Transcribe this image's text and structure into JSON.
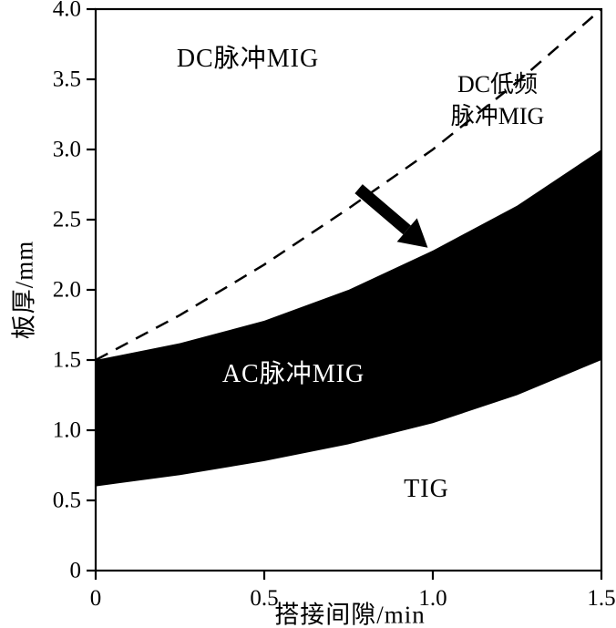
{
  "figure": {
    "background": "#ffffff",
    "ink_color": "#000000",
    "band_fill": "#000000"
  },
  "chart_data": {
    "type": "area",
    "title": "",
    "xlabel": "搭接间隙/min",
    "ylabel": "板厚/mm",
    "xlim": [
      0,
      1.5
    ],
    "ylim": [
      0,
      4.0
    ],
    "grid": false,
    "x_ticks": [
      0,
      0.5,
      1.0,
      1.5
    ],
    "x_tick_labels": [
      "0",
      "0.5",
      "1.0",
      "1.5"
    ],
    "y_ticks": [
      0,
      0.5,
      1.0,
      1.5,
      2.0,
      2.5,
      3.0,
      3.5,
      4.0
    ],
    "y_tick_labels": [
      "0",
      "0.5",
      "1.0",
      "1.5",
      "2.0",
      "2.5",
      "3.0",
      "3.5",
      "4.0"
    ],
    "x": [
      0,
      0.25,
      0.5,
      0.75,
      1.0,
      1.25,
      1.5
    ],
    "series": [
      {
        "name": "dashed-upper-boundary",
        "style": "dashed",
        "values": [
          1.5,
          1.82,
          2.18,
          2.58,
          3.0,
          3.48,
          4.0
        ]
      },
      {
        "name": "band-upper-edge",
        "style": "band-edge",
        "values": [
          1.5,
          1.62,
          1.78,
          2.0,
          2.28,
          2.6,
          3.0
        ]
      },
      {
        "name": "band-lower-edge",
        "style": "band-edge",
        "values": [
          0.6,
          0.68,
          0.78,
          0.9,
          1.05,
          1.25,
          1.5
        ]
      }
    ],
    "band": {
      "fill": "#000000",
      "between": [
        "band-upper-edge",
        "band-lower-edge"
      ]
    },
    "arrow": {
      "from_xy": [
        0.78,
        2.72
      ],
      "to_xy": [
        0.985,
        2.3
      ],
      "color": "#000000"
    },
    "region_labels": {
      "dc_pulse": "DC脉冲MIG",
      "dc_lowfreq_line1": "DC低频",
      "dc_lowfreq_line2": "脉冲MIG",
      "ac_pulse": "AC脉冲MIG",
      "tig": "TIG"
    },
    "legend": null
  }
}
